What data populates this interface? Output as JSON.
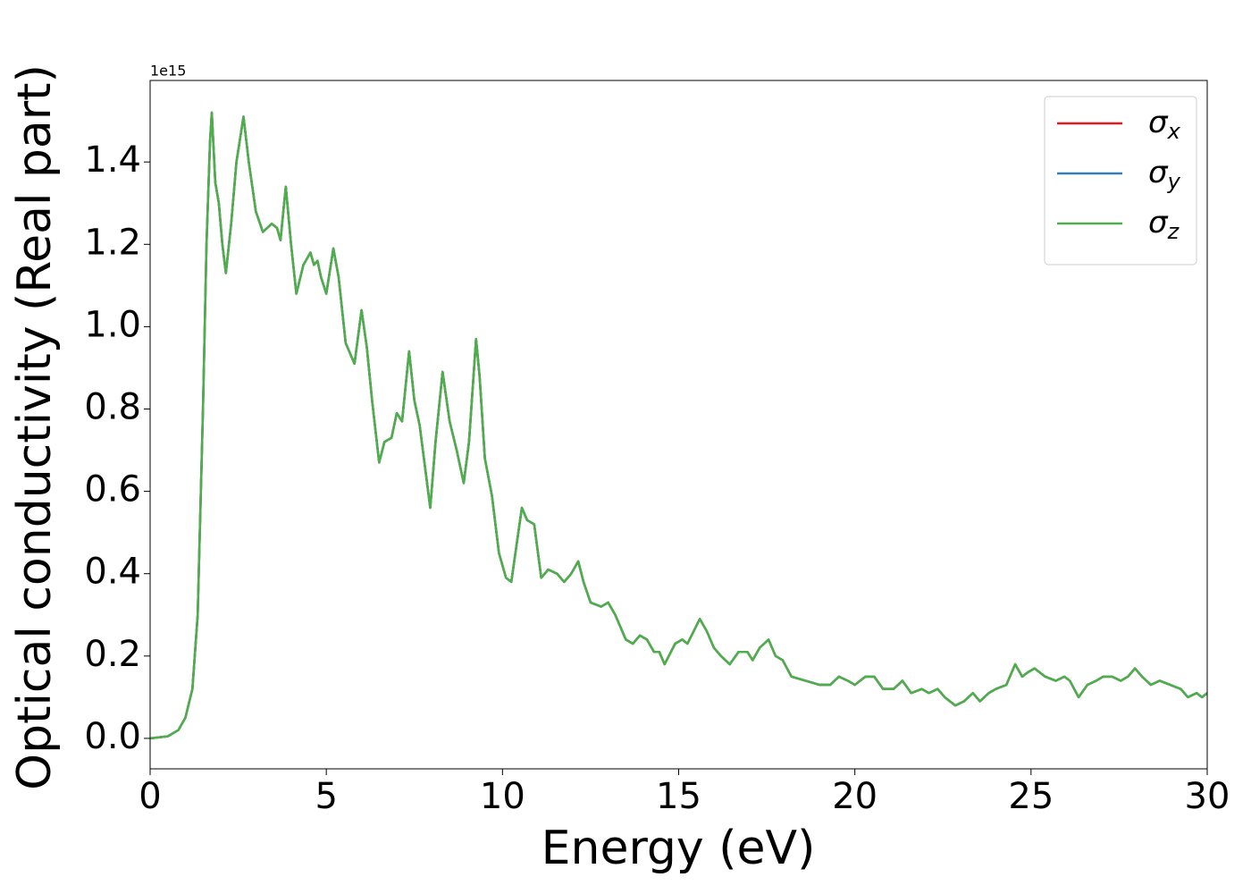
{
  "chart_data": {
    "type": "line",
    "xlabel": "Energy (eV)",
    "ylabel": "Optical conductivity (Real part)",
    "y_offset_label": "1e15",
    "x": [
      0,
      0.5,
      0.8,
      1.0,
      1.2,
      1.35,
      1.5,
      1.6,
      1.7,
      1.75,
      1.85,
      1.95,
      2.05,
      2.15,
      2.3,
      2.45,
      2.65,
      2.8,
      3.0,
      3.2,
      3.45,
      3.6,
      3.7,
      3.85,
      4.0,
      4.15,
      4.35,
      4.55,
      4.65,
      4.75,
      4.85,
      5.0,
      5.2,
      5.35,
      5.55,
      5.8,
      6.0,
      6.15,
      6.3,
      6.5,
      6.65,
      6.85,
      7.0,
      7.15,
      7.35,
      7.5,
      7.65,
      7.8,
      7.95,
      8.1,
      8.3,
      8.5,
      8.7,
      8.9,
      9.05,
      9.25,
      9.35,
      9.5,
      9.7,
      9.9,
      10.1,
      10.25,
      10.4,
      10.55,
      10.7,
      10.9,
      11.1,
      11.3,
      11.55,
      11.75,
      11.95,
      12.15,
      12.3,
      12.5,
      12.8,
      13.0,
      13.2,
      13.5,
      13.7,
      13.9,
      14.1,
      14.3,
      14.45,
      14.6,
      14.9,
      15.1,
      15.25,
      15.6,
      15.8,
      16.0,
      16.2,
      16.45,
      16.7,
      16.95,
      17.1,
      17.3,
      17.55,
      17.75,
      17.95,
      18.2,
      18.6,
      19.0,
      19.3,
      19.55,
      19.8,
      20.0,
      20.3,
      20.55,
      20.8,
      21.1,
      21.35,
      21.6,
      21.9,
      22.1,
      22.35,
      22.55,
      22.85,
      23.1,
      23.35,
      23.55,
      23.8,
      24.0,
      24.3,
      24.55,
      24.75,
      24.9,
      25.1,
      25.4,
      25.7,
      25.95,
      26.1,
      26.35,
      26.6,
      26.85,
      27.05,
      27.3,
      27.55,
      27.75,
      27.95,
      28.15,
      28.4,
      28.65,
      28.95,
      29.25,
      29.45,
      29.7,
      29.85,
      30.0
    ],
    "series": [
      {
        "name": "σx",
        "color": "#e41a1c",
        "values": [
          0,
          0.005,
          0.02,
          0.05,
          0.12,
          0.3,
          0.8,
          1.2,
          1.45,
          1.52,
          1.35,
          1.3,
          1.2,
          1.13,
          1.25,
          1.4,
          1.51,
          1.4,
          1.28,
          1.23,
          1.25,
          1.24,
          1.21,
          1.34,
          1.2,
          1.08,
          1.15,
          1.18,
          1.15,
          1.16,
          1.12,
          1.08,
          1.19,
          1.12,
          0.96,
          0.91,
          1.04,
          0.95,
          0.82,
          0.67,
          0.72,
          0.73,
          0.79,
          0.77,
          0.94,
          0.82,
          0.76,
          0.66,
          0.56,
          0.72,
          0.89,
          0.77,
          0.7,
          0.62,
          0.72,
          0.97,
          0.88,
          0.68,
          0.59,
          0.45,
          0.39,
          0.38,
          0.47,
          0.56,
          0.53,
          0.52,
          0.39,
          0.41,
          0.4,
          0.38,
          0.4,
          0.43,
          0.38,
          0.33,
          0.32,
          0.33,
          0.3,
          0.24,
          0.23,
          0.25,
          0.24,
          0.21,
          0.21,
          0.18,
          0.23,
          0.24,
          0.23,
          0.29,
          0.26,
          0.22,
          0.2,
          0.18,
          0.21,
          0.21,
          0.19,
          0.22,
          0.24,
          0.2,
          0.19,
          0.15,
          0.14,
          0.13,
          0.13,
          0.15,
          0.14,
          0.13,
          0.15,
          0.15,
          0.12,
          0.12,
          0.14,
          0.11,
          0.12,
          0.11,
          0.12,
          0.1,
          0.08,
          0.09,
          0.11,
          0.09,
          0.11,
          0.12,
          0.13,
          0.18,
          0.15,
          0.16,
          0.17,
          0.15,
          0.14,
          0.15,
          0.14,
          0.1,
          0.13,
          0.14,
          0.15,
          0.15,
          0.14,
          0.15,
          0.17,
          0.15,
          0.13,
          0.14,
          0.13,
          0.12,
          0.1,
          0.11,
          0.1,
          0.11
        ]
      },
      {
        "name": "σy",
        "color": "#377eb8",
        "values": [
          0,
          0.005,
          0.02,
          0.05,
          0.12,
          0.3,
          0.8,
          1.2,
          1.45,
          1.52,
          1.35,
          1.3,
          1.2,
          1.13,
          1.25,
          1.4,
          1.51,
          1.4,
          1.28,
          1.23,
          1.25,
          1.24,
          1.21,
          1.34,
          1.2,
          1.08,
          1.15,
          1.18,
          1.15,
          1.16,
          1.12,
          1.08,
          1.19,
          1.12,
          0.96,
          0.91,
          1.04,
          0.95,
          0.82,
          0.67,
          0.72,
          0.73,
          0.79,
          0.77,
          0.94,
          0.82,
          0.76,
          0.66,
          0.56,
          0.72,
          0.89,
          0.77,
          0.7,
          0.62,
          0.72,
          0.97,
          0.88,
          0.68,
          0.59,
          0.45,
          0.39,
          0.38,
          0.47,
          0.56,
          0.53,
          0.52,
          0.39,
          0.41,
          0.4,
          0.38,
          0.4,
          0.43,
          0.38,
          0.33,
          0.32,
          0.33,
          0.3,
          0.24,
          0.23,
          0.25,
          0.24,
          0.21,
          0.21,
          0.18,
          0.23,
          0.24,
          0.23,
          0.29,
          0.26,
          0.22,
          0.2,
          0.18,
          0.21,
          0.21,
          0.19,
          0.22,
          0.24,
          0.2,
          0.19,
          0.15,
          0.14,
          0.13,
          0.13,
          0.15,
          0.14,
          0.13,
          0.15,
          0.15,
          0.12,
          0.12,
          0.14,
          0.11,
          0.12,
          0.11,
          0.12,
          0.1,
          0.08,
          0.09,
          0.11,
          0.09,
          0.11,
          0.12,
          0.13,
          0.18,
          0.15,
          0.16,
          0.17,
          0.15,
          0.14,
          0.15,
          0.14,
          0.1,
          0.13,
          0.14,
          0.15,
          0.15,
          0.14,
          0.15,
          0.17,
          0.15,
          0.13,
          0.14,
          0.13,
          0.12,
          0.1,
          0.11,
          0.1,
          0.11
        ]
      },
      {
        "name": "σz",
        "color": "#4daf4a",
        "values": [
          0,
          0.005,
          0.02,
          0.05,
          0.12,
          0.3,
          0.8,
          1.2,
          1.45,
          1.52,
          1.35,
          1.3,
          1.2,
          1.13,
          1.25,
          1.4,
          1.51,
          1.4,
          1.28,
          1.23,
          1.25,
          1.24,
          1.21,
          1.34,
          1.2,
          1.08,
          1.15,
          1.18,
          1.15,
          1.16,
          1.12,
          1.08,
          1.19,
          1.12,
          0.96,
          0.91,
          1.04,
          0.95,
          0.82,
          0.67,
          0.72,
          0.73,
          0.79,
          0.77,
          0.94,
          0.82,
          0.76,
          0.66,
          0.56,
          0.72,
          0.89,
          0.77,
          0.7,
          0.62,
          0.72,
          0.97,
          0.88,
          0.68,
          0.59,
          0.45,
          0.39,
          0.38,
          0.47,
          0.56,
          0.53,
          0.52,
          0.39,
          0.41,
          0.4,
          0.38,
          0.4,
          0.43,
          0.38,
          0.33,
          0.32,
          0.33,
          0.3,
          0.24,
          0.23,
          0.25,
          0.24,
          0.21,
          0.21,
          0.18,
          0.23,
          0.24,
          0.23,
          0.29,
          0.26,
          0.22,
          0.2,
          0.18,
          0.21,
          0.21,
          0.19,
          0.22,
          0.24,
          0.2,
          0.19,
          0.15,
          0.14,
          0.13,
          0.13,
          0.15,
          0.14,
          0.13,
          0.15,
          0.15,
          0.12,
          0.12,
          0.14,
          0.11,
          0.12,
          0.11,
          0.12,
          0.1,
          0.08,
          0.09,
          0.11,
          0.09,
          0.11,
          0.12,
          0.13,
          0.18,
          0.15,
          0.16,
          0.17,
          0.15,
          0.14,
          0.15,
          0.14,
          0.1,
          0.13,
          0.14,
          0.15,
          0.15,
          0.14,
          0.15,
          0.17,
          0.15,
          0.13,
          0.14,
          0.13,
          0.12,
          0.1,
          0.11,
          0.1,
          0.11
        ]
      }
    ],
    "xlim": [
      0,
      30
    ],
    "xticks": [
      0,
      5,
      10,
      15,
      20,
      25,
      30
    ],
    "ylim": [
      -0.074,
      1.598
    ],
    "yticks": [
      {
        "value": 0,
        "label": "0.0"
      },
      0.2,
      0.4,
      0.6,
      0.8,
      {
        "value": 1,
        "label": "1.0"
      },
      1.2,
      1.4
    ],
    "grid": false,
    "legend": "upper right"
  }
}
